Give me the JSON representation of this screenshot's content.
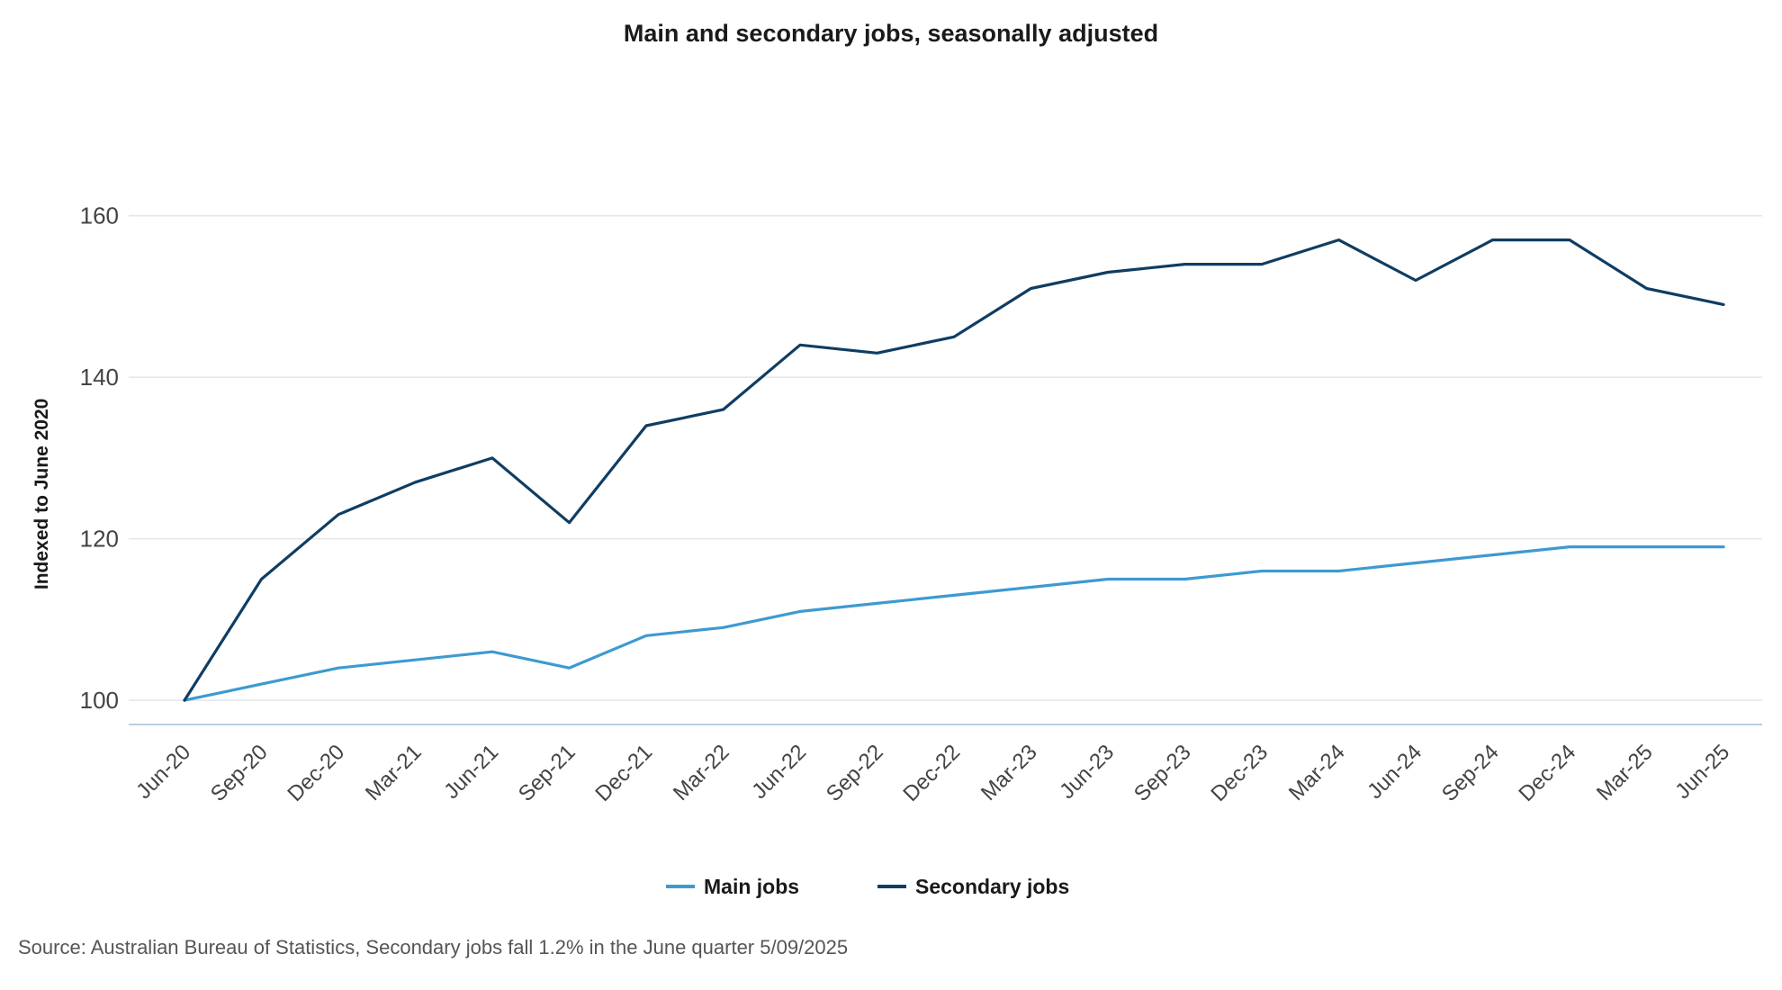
{
  "chart_data": {
    "type": "line",
    "title": "Main and secondary jobs, seasonally adjusted",
    "xlabel": "",
    "ylabel": "Indexed to June 2020",
    "ylim": [
      97,
      170
    ],
    "yticks": [
      100,
      120,
      140,
      160
    ],
    "grid": true,
    "legend_position": "bottom",
    "categories": [
      "Jun-20",
      "Sep-20",
      "Dec-20",
      "Mar-21",
      "Jun-21",
      "Sep-21",
      "Dec-21",
      "Mar-22",
      "Jun-22",
      "Sep-22",
      "Dec-22",
      "Mar-23",
      "Jun-23",
      "Sep-23",
      "Dec-23",
      "Mar-24",
      "Jun-24",
      "Sep-24",
      "Dec-24",
      "Mar-25",
      "Jun-25"
    ],
    "series": [
      {
        "name": "Main jobs",
        "color": "#3d9ad1",
        "values": [
          100,
          102,
          104,
          105,
          106,
          104,
          108,
          109,
          111,
          112,
          113,
          114,
          115,
          115,
          116,
          116,
          117,
          118,
          119,
          119,
          119
        ]
      },
      {
        "name": "Secondary jobs",
        "color": "#0f3d63",
        "values": [
          100,
          115,
          123,
          127,
          130,
          122,
          134,
          136,
          144,
          143,
          145,
          151,
          153,
          154,
          154,
          157,
          152,
          157,
          157,
          151,
          149
        ]
      }
    ]
  },
  "footnote": "Source: Australian Bureau of Statistics, Secondary jobs fall 1.2% in the June quarter 5/09/2025"
}
